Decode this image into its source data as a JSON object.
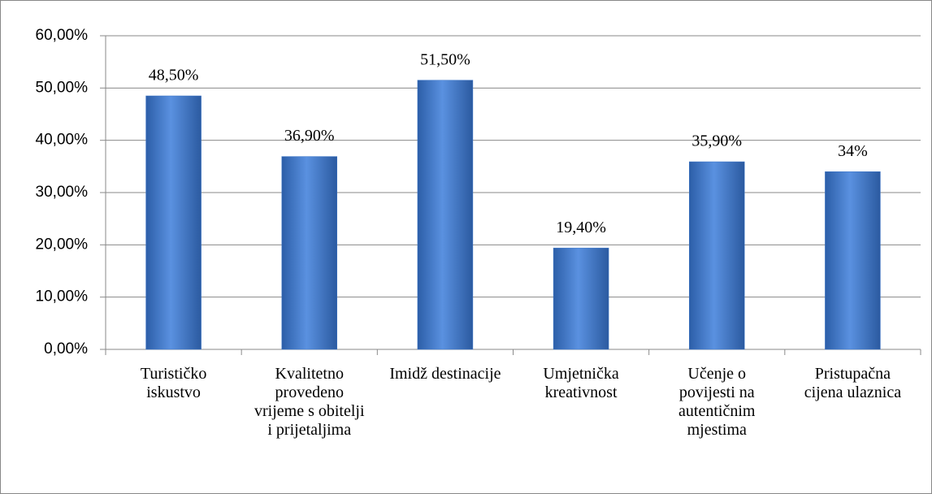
{
  "chart_data": {
    "type": "bar",
    "categories": [
      "Turističko iskustvo",
      "Kvalitetno provedeno vrijeme s obitelji i prijetaljima",
      "Imidž destinacije",
      "Umjetnička kreativnost",
      "Učenje o povijesti na autentičnim mjestima",
      "Pristupačna cijena ulaznica"
    ],
    "values": [
      48.5,
      36.9,
      51.5,
      19.4,
      35.9,
      34
    ],
    "value_labels": [
      "48,50%",
      "36,90%",
      "51,50%",
      "19,40%",
      "35,90%",
      "34%"
    ],
    "color": "#3f78c9",
    "ylim": [
      0,
      60
    ],
    "yticks": [
      {
        "value": 0,
        "label": "0,00%"
      },
      {
        "value": 10,
        "label": "10,00%"
      },
      {
        "value": 20,
        "label": "20,00%"
      },
      {
        "value": 30,
        "label": "30,00%"
      },
      {
        "value": 40,
        "label": "40,00%"
      },
      {
        "value": 50,
        "label": "50,00%"
      },
      {
        "value": 60,
        "label": "60,00%"
      }
    ],
    "grid": true
  }
}
